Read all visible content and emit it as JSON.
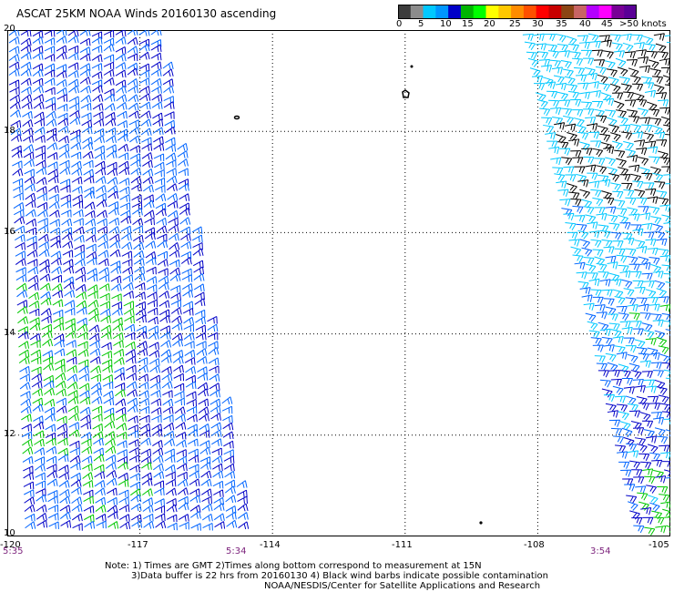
{
  "title": "ASCAT 25KM NOAA Winds 20160130 ascending",
  "colorbar": {
    "labels": [
      "0",
      "5",
      "10",
      "15",
      "20",
      "25",
      "30",
      "35",
      "40",
      "45",
      ">50 knots"
    ],
    "colors": [
      "#3c3c3c",
      "#8c8c8c",
      "#00c8ff",
      "#0096ff",
      "#0000c8",
      "#00b400",
      "#00ff00",
      "#ffff00",
      "#ffc800",
      "#ff8c00",
      "#ff5000",
      "#ff0000",
      "#c80000",
      "#8b4513",
      "#c86464",
      "#b400ff",
      "#ff00ff",
      "#780096",
      "#5a0096"
    ]
  },
  "axes": {
    "y_labels": [
      "20",
      "18",
      "16",
      "14",
      "12",
      "10"
    ],
    "x_labels": [
      "-120",
      "-117",
      "-114",
      "-111",
      "-108",
      "-105"
    ],
    "x_range": [
      -120,
      -105
    ],
    "y_range": [
      10,
      20
    ]
  },
  "pass_times": [
    "5:35",
    "5:34",
    "3:54"
  ],
  "notes": [
    "Note: 1) Times are GMT 2)Times along bottom correspond to measurement at 15N",
    "3)Data buffer is 22 hrs from 20160130 4) Black wind barbs indicate possible contamination",
    "NOAA/NESDIS/Center for Satellite Applications and Research"
  ],
  "swath_colors": {
    "dark_blue": "#0000c8",
    "blue": "#0064ff",
    "cyan": "#00c8ff",
    "green": "#00c800",
    "black": "#000000"
  }
}
